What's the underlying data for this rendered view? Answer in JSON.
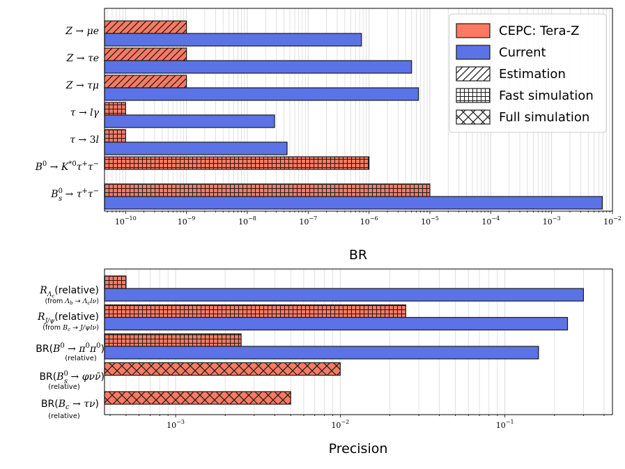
{
  "chart_data": [
    {
      "type": "bar",
      "orientation": "horizontal",
      "xscale": "log",
      "xlabel": "BR",
      "xlim": [
        4.5e-11,
        0.01
      ],
      "xticks": [
        {
          "value": 1e-10,
          "base": "10",
          "exp": "−10"
        },
        {
          "value": 1e-09,
          "base": "10",
          "exp": "−9"
        },
        {
          "value": 1e-08,
          "base": "10",
          "exp": "−8"
        },
        {
          "value": 1e-07,
          "base": "10",
          "exp": "−7"
        },
        {
          "value": 1e-06,
          "base": "10",
          "exp": "−6"
        },
        {
          "value": 1e-05,
          "base": "10",
          "exp": "−5"
        },
        {
          "value": 0.0001,
          "base": "10",
          "exp": "−4"
        },
        {
          "value": 0.001,
          "base": "10",
          "exp": "−3"
        },
        {
          "value": 0.01,
          "base": "10",
          "exp": "−2"
        }
      ],
      "grid": "vertical minor lines",
      "legend_position": "top-right",
      "categories": [
        "Z → μe",
        "Z → τe",
        "Z → τμ",
        "τ → lγ",
        "τ → 3l",
        "B⁰ → K*⁰τ⁺τ⁻",
        "B⁰ₛ → τ⁺τ⁻"
      ],
      "series": [
        {
          "name": "CEPC: Tera-Z",
          "color": "#fa7a63",
          "values": [
            1e-09,
            1e-09,
            1e-09,
            1e-10,
            1e-10,
            1e-06,
            1e-05
          ],
          "hatch": [
            "Estimation",
            "Estimation",
            "Estimation",
            "Fast simulation",
            "Fast simulation",
            "Fast simulation",
            "Fast simulation"
          ]
        },
        {
          "name": "Current",
          "color": "#5b73e6",
          "values": [
            7.5e-07,
            5e-06,
            6.5e-06,
            2.8e-08,
            4.5e-08,
            null,
            0.0068
          ]
        }
      ],
      "legend": [
        {
          "label": "CEPC: Tera-Z",
          "kind": "fill",
          "color": "#fa7a63"
        },
        {
          "label": "Current",
          "kind": "fill",
          "color": "#5b73e6"
        },
        {
          "label": "Estimation",
          "kind": "hatch",
          "hatch": "diag"
        },
        {
          "label": "Fast simulation",
          "kind": "hatch",
          "hatch": "grid"
        },
        {
          "label": "Full simulation",
          "kind": "hatch",
          "hatch": "cross"
        }
      ]
    },
    {
      "type": "bar",
      "orientation": "horizontal",
      "xscale": "log",
      "xlabel": "Precision",
      "xlim": [
        0.00037,
        0.45
      ],
      "xticks": [
        {
          "value": 0.001,
          "base": "10",
          "exp": "−3"
        },
        {
          "value": 0.01,
          "base": "10",
          "exp": "−2"
        },
        {
          "value": 0.1,
          "base": "10",
          "exp": "−1"
        }
      ],
      "grid": "vertical minor lines",
      "categories": [
        {
          "main": "R_Λc(relative)",
          "sub": "(from Λb → Λc lν)"
        },
        {
          "main": "R_J/ψ(relative)",
          "sub": "(from Bc → J/ψ lν)"
        },
        {
          "main": "BR(B⁰ → π⁰π⁰)",
          "sub": "(relative)"
        },
        {
          "main": "BR(B⁰ₛ → φνν̄)",
          "sub": "(relative)"
        },
        {
          "main": "BR(Bc → τν)",
          "sub": "(relative)"
        }
      ],
      "series": [
        {
          "name": "CEPC: Tera-Z",
          "color": "#fa7a63",
          "values": [
            0.0005,
            0.025,
            0.0025,
            0.01,
            0.005
          ],
          "hatch": [
            "Fast simulation",
            "Fast simulation",
            "Fast simulation",
            "Full simulation",
            "Full simulation"
          ]
        },
        {
          "name": "Current",
          "color": "#5b73e6",
          "values": [
            0.3,
            0.24,
            0.16,
            null,
            null
          ]
        }
      ]
    }
  ]
}
